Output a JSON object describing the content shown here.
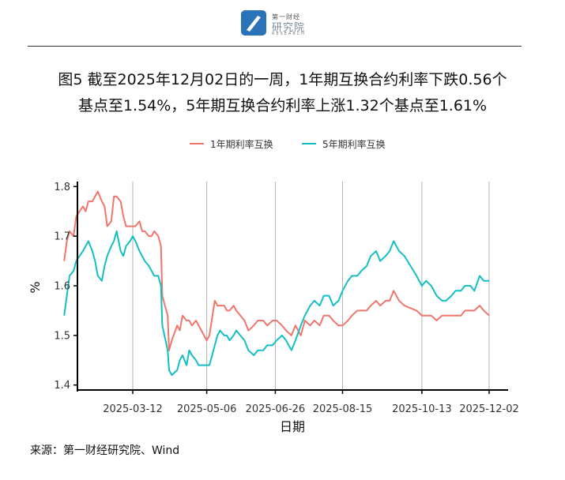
{
  "logo": {
    "top_text": "第一财经",
    "main_text": "研究院",
    "sub_text": "RESEARCH"
  },
  "title": {
    "line1": "图5  截至2025年12月02日的一周，1年期互换合约利率下跌0.56个",
    "line2": "基点至1.54%，5年期互换合约利率上涨1.32个基点至1.61%"
  },
  "source": "来源：第一财经研究院、Wind",
  "chart_data": {
    "type": "line",
    "xlabel": "日期",
    "ylabel": "%",
    "x_ticks": [
      "2025-03-12",
      "2025-05-06",
      "2025-06-26",
      "2025-08-15",
      "2025-10-13",
      "2025-12-02"
    ],
    "y_ticks": [
      1.4,
      1.5,
      1.6,
      1.7,
      1.8
    ],
    "ylim": [
      1.39,
      1.81
    ],
    "grid": "vertical lines at x ticks",
    "legend_position": "top",
    "colors": {
      "one_year": "#f0766d",
      "five_year": "#13bfc4"
    },
    "series": [
      {
        "name": "1年期利率互换",
        "color": "#f0766d",
        "values": [
          [
            "2025-01-20",
            1.65
          ],
          [
            "2025-01-22",
            1.69
          ],
          [
            "2025-01-24",
            1.71
          ],
          [
            "2025-01-27",
            1.7
          ],
          [
            "2025-01-29",
            1.74
          ],
          [
            "2025-02-03",
            1.76
          ],
          [
            "2025-02-05",
            1.75
          ],
          [
            "2025-02-07",
            1.77
          ],
          [
            "2025-02-10",
            1.77
          ],
          [
            "2025-02-12",
            1.78
          ],
          [
            "2025-02-14",
            1.79
          ],
          [
            "2025-02-17",
            1.77
          ],
          [
            "2025-02-19",
            1.76
          ],
          [
            "2025-02-21",
            1.72
          ],
          [
            "2025-02-24",
            1.73
          ],
          [
            "2025-02-26",
            1.78
          ],
          [
            "2025-02-28",
            1.78
          ],
          [
            "2025-03-03",
            1.77
          ],
          [
            "2025-03-05",
            1.74
          ],
          [
            "2025-03-07",
            1.72
          ],
          [
            "2025-03-10",
            1.72
          ],
          [
            "2025-03-12",
            1.72
          ],
          [
            "2025-03-14",
            1.72
          ],
          [
            "2025-03-17",
            1.73
          ],
          [
            "2025-03-19",
            1.71
          ],
          [
            "2025-03-21",
            1.71
          ],
          [
            "2025-03-24",
            1.7
          ],
          [
            "2025-03-26",
            1.7
          ],
          [
            "2025-03-28",
            1.71
          ],
          [
            "2025-03-31",
            1.7
          ],
          [
            "2025-04-02",
            1.68
          ],
          [
            "2025-04-03",
            1.58
          ],
          [
            "2025-04-07",
            1.54
          ],
          [
            "2025-04-08",
            1.47
          ],
          [
            "2025-04-10",
            1.49
          ],
          [
            "2025-04-14",
            1.52
          ],
          [
            "2025-04-16",
            1.51
          ],
          [
            "2025-04-18",
            1.54
          ],
          [
            "2025-04-21",
            1.53
          ],
          [
            "2025-04-23",
            1.53
          ],
          [
            "2025-04-25",
            1.52
          ],
          [
            "2025-04-28",
            1.53
          ],
          [
            "2025-04-30",
            1.52
          ],
          [
            "2025-05-06",
            1.49
          ],
          [
            "2025-05-08",
            1.5
          ],
          [
            "2025-05-12",
            1.57
          ],
          [
            "2025-05-14",
            1.56
          ],
          [
            "2025-05-16",
            1.56
          ],
          [
            "2025-05-19",
            1.56
          ],
          [
            "2025-05-21",
            1.55
          ],
          [
            "2025-05-23",
            1.55
          ],
          [
            "2025-05-26",
            1.56
          ],
          [
            "2025-05-28",
            1.55
          ],
          [
            "2025-06-03",
            1.53
          ],
          [
            "2025-06-06",
            1.51
          ],
          [
            "2025-06-10",
            1.52
          ],
          [
            "2025-06-13",
            1.53
          ],
          [
            "2025-06-17",
            1.53
          ],
          [
            "2025-06-20",
            1.52
          ],
          [
            "2025-06-24",
            1.53
          ],
          [
            "2025-06-27",
            1.53
          ],
          [
            "2025-07-01",
            1.52
          ],
          [
            "2025-07-04",
            1.51
          ],
          [
            "2025-07-08",
            1.5
          ],
          [
            "2025-07-11",
            1.52
          ],
          [
            "2025-07-15",
            1.5
          ],
          [
            "2025-07-18",
            1.53
          ],
          [
            "2025-07-22",
            1.52
          ],
          [
            "2025-07-25",
            1.53
          ],
          [
            "2025-07-29",
            1.52
          ],
          [
            "2025-08-01",
            1.54
          ],
          [
            "2025-08-05",
            1.54
          ],
          [
            "2025-08-08",
            1.53
          ],
          [
            "2025-08-12",
            1.52
          ],
          [
            "2025-08-15",
            1.52
          ],
          [
            "2025-08-19",
            1.53
          ],
          [
            "2025-08-22",
            1.54
          ],
          [
            "2025-08-26",
            1.55
          ],
          [
            "2025-08-29",
            1.55
          ],
          [
            "2025-09-02",
            1.55
          ],
          [
            "2025-09-05",
            1.56
          ],
          [
            "2025-09-09",
            1.57
          ],
          [
            "2025-09-12",
            1.56
          ],
          [
            "2025-09-16",
            1.57
          ],
          [
            "2025-09-19",
            1.57
          ],
          [
            "2025-09-22",
            1.59
          ],
          [
            "2025-09-24",
            1.58
          ],
          [
            "2025-09-26",
            1.57
          ],
          [
            "2025-09-30",
            1.56
          ],
          [
            "2025-10-09",
            1.55
          ],
          [
            "2025-10-13",
            1.54
          ],
          [
            "2025-10-16",
            1.54
          ],
          [
            "2025-10-20",
            1.54
          ],
          [
            "2025-10-24",
            1.53
          ],
          [
            "2025-10-28",
            1.54
          ],
          [
            "2025-10-31",
            1.54
          ],
          [
            "2025-11-04",
            1.54
          ],
          [
            "2025-11-07",
            1.54
          ],
          [
            "2025-11-11",
            1.54
          ],
          [
            "2025-11-14",
            1.55
          ],
          [
            "2025-11-18",
            1.55
          ],
          [
            "2025-11-21",
            1.55
          ],
          [
            "2025-11-25",
            1.56
          ],
          [
            "2025-11-28",
            1.55
          ],
          [
            "2025-12-02",
            1.54
          ]
        ]
      },
      {
        "name": "5年期利率互换",
        "color": "#13bfc4",
        "values": [
          [
            "2025-01-20",
            1.54
          ],
          [
            "2025-01-22",
            1.58
          ],
          [
            "2025-01-24",
            1.62
          ],
          [
            "2025-01-27",
            1.63
          ],
          [
            "2025-01-29",
            1.65
          ],
          [
            "2025-02-03",
            1.67
          ],
          [
            "2025-02-05",
            1.68
          ],
          [
            "2025-02-07",
            1.69
          ],
          [
            "2025-02-10",
            1.67
          ],
          [
            "2025-02-12",
            1.65
          ],
          [
            "2025-02-14",
            1.62
          ],
          [
            "2025-02-17",
            1.61
          ],
          [
            "2025-02-19",
            1.64
          ],
          [
            "2025-02-21",
            1.66
          ],
          [
            "2025-02-24",
            1.68
          ],
          [
            "2025-02-26",
            1.69
          ],
          [
            "2025-02-28",
            1.71
          ],
          [
            "2025-03-03",
            1.67
          ],
          [
            "2025-03-05",
            1.66
          ],
          [
            "2025-03-07",
            1.68
          ],
          [
            "2025-03-10",
            1.69
          ],
          [
            "2025-03-12",
            1.7
          ],
          [
            "2025-03-14",
            1.69
          ],
          [
            "2025-03-17",
            1.67
          ],
          [
            "2025-03-19",
            1.66
          ],
          [
            "2025-03-21",
            1.65
          ],
          [
            "2025-03-24",
            1.64
          ],
          [
            "2025-03-26",
            1.63
          ],
          [
            "2025-03-28",
            1.62
          ],
          [
            "2025-03-31",
            1.62
          ],
          [
            "2025-04-02",
            1.6
          ],
          [
            "2025-04-03",
            1.52
          ],
          [
            "2025-04-07",
            1.47
          ],
          [
            "2025-04-08",
            1.43
          ],
          [
            "2025-04-10",
            1.42
          ],
          [
            "2025-04-14",
            1.43
          ],
          [
            "2025-04-16",
            1.45
          ],
          [
            "2025-04-18",
            1.46
          ],
          [
            "2025-04-21",
            1.44
          ],
          [
            "2025-04-23",
            1.47
          ],
          [
            "2025-04-25",
            1.46
          ],
          [
            "2025-04-28",
            1.45
          ],
          [
            "2025-04-30",
            1.44
          ],
          [
            "2025-05-06",
            1.44
          ],
          [
            "2025-05-08",
            1.44
          ],
          [
            "2025-05-12",
            1.48
          ],
          [
            "2025-05-14",
            1.5
          ],
          [
            "2025-05-16",
            1.51
          ],
          [
            "2025-05-19",
            1.5
          ],
          [
            "2025-05-21",
            1.5
          ],
          [
            "2025-05-23",
            1.49
          ],
          [
            "2025-05-26",
            1.5
          ],
          [
            "2025-05-28",
            1.51
          ],
          [
            "2025-06-03",
            1.49
          ],
          [
            "2025-06-06",
            1.47
          ],
          [
            "2025-06-10",
            1.46
          ],
          [
            "2025-06-13",
            1.47
          ],
          [
            "2025-06-17",
            1.47
          ],
          [
            "2025-06-20",
            1.48
          ],
          [
            "2025-06-24",
            1.48
          ],
          [
            "2025-06-27",
            1.49
          ],
          [
            "2025-07-01",
            1.5
          ],
          [
            "2025-07-04",
            1.49
          ],
          [
            "2025-07-08",
            1.47
          ],
          [
            "2025-07-11",
            1.49
          ],
          [
            "2025-07-15",
            1.52
          ],
          [
            "2025-07-18",
            1.54
          ],
          [
            "2025-07-22",
            1.56
          ],
          [
            "2025-07-25",
            1.57
          ],
          [
            "2025-07-29",
            1.56
          ],
          [
            "2025-08-01",
            1.58
          ],
          [
            "2025-08-05",
            1.58
          ],
          [
            "2025-08-08",
            1.56
          ],
          [
            "2025-08-12",
            1.57
          ],
          [
            "2025-08-15",
            1.59
          ],
          [
            "2025-08-19",
            1.61
          ],
          [
            "2025-08-22",
            1.62
          ],
          [
            "2025-08-26",
            1.62
          ],
          [
            "2025-08-29",
            1.63
          ],
          [
            "2025-09-02",
            1.64
          ],
          [
            "2025-09-05",
            1.66
          ],
          [
            "2025-09-09",
            1.67
          ],
          [
            "2025-09-12",
            1.65
          ],
          [
            "2025-09-16",
            1.66
          ],
          [
            "2025-09-19",
            1.67
          ],
          [
            "2025-09-22",
            1.69
          ],
          [
            "2025-09-24",
            1.68
          ],
          [
            "2025-09-26",
            1.67
          ],
          [
            "2025-09-30",
            1.66
          ],
          [
            "2025-10-09",
            1.62
          ],
          [
            "2025-10-13",
            1.6
          ],
          [
            "2025-10-16",
            1.61
          ],
          [
            "2025-10-20",
            1.6
          ],
          [
            "2025-10-24",
            1.58
          ],
          [
            "2025-10-28",
            1.57
          ],
          [
            "2025-10-31",
            1.57
          ],
          [
            "2025-11-04",
            1.58
          ],
          [
            "2025-11-07",
            1.59
          ],
          [
            "2025-11-11",
            1.59
          ],
          [
            "2025-11-14",
            1.6
          ],
          [
            "2025-11-18",
            1.6
          ],
          [
            "2025-11-21",
            1.59
          ],
          [
            "2025-11-25",
            1.62
          ],
          [
            "2025-11-28",
            1.61
          ],
          [
            "2025-12-02",
            1.61
          ]
        ]
      }
    ]
  }
}
